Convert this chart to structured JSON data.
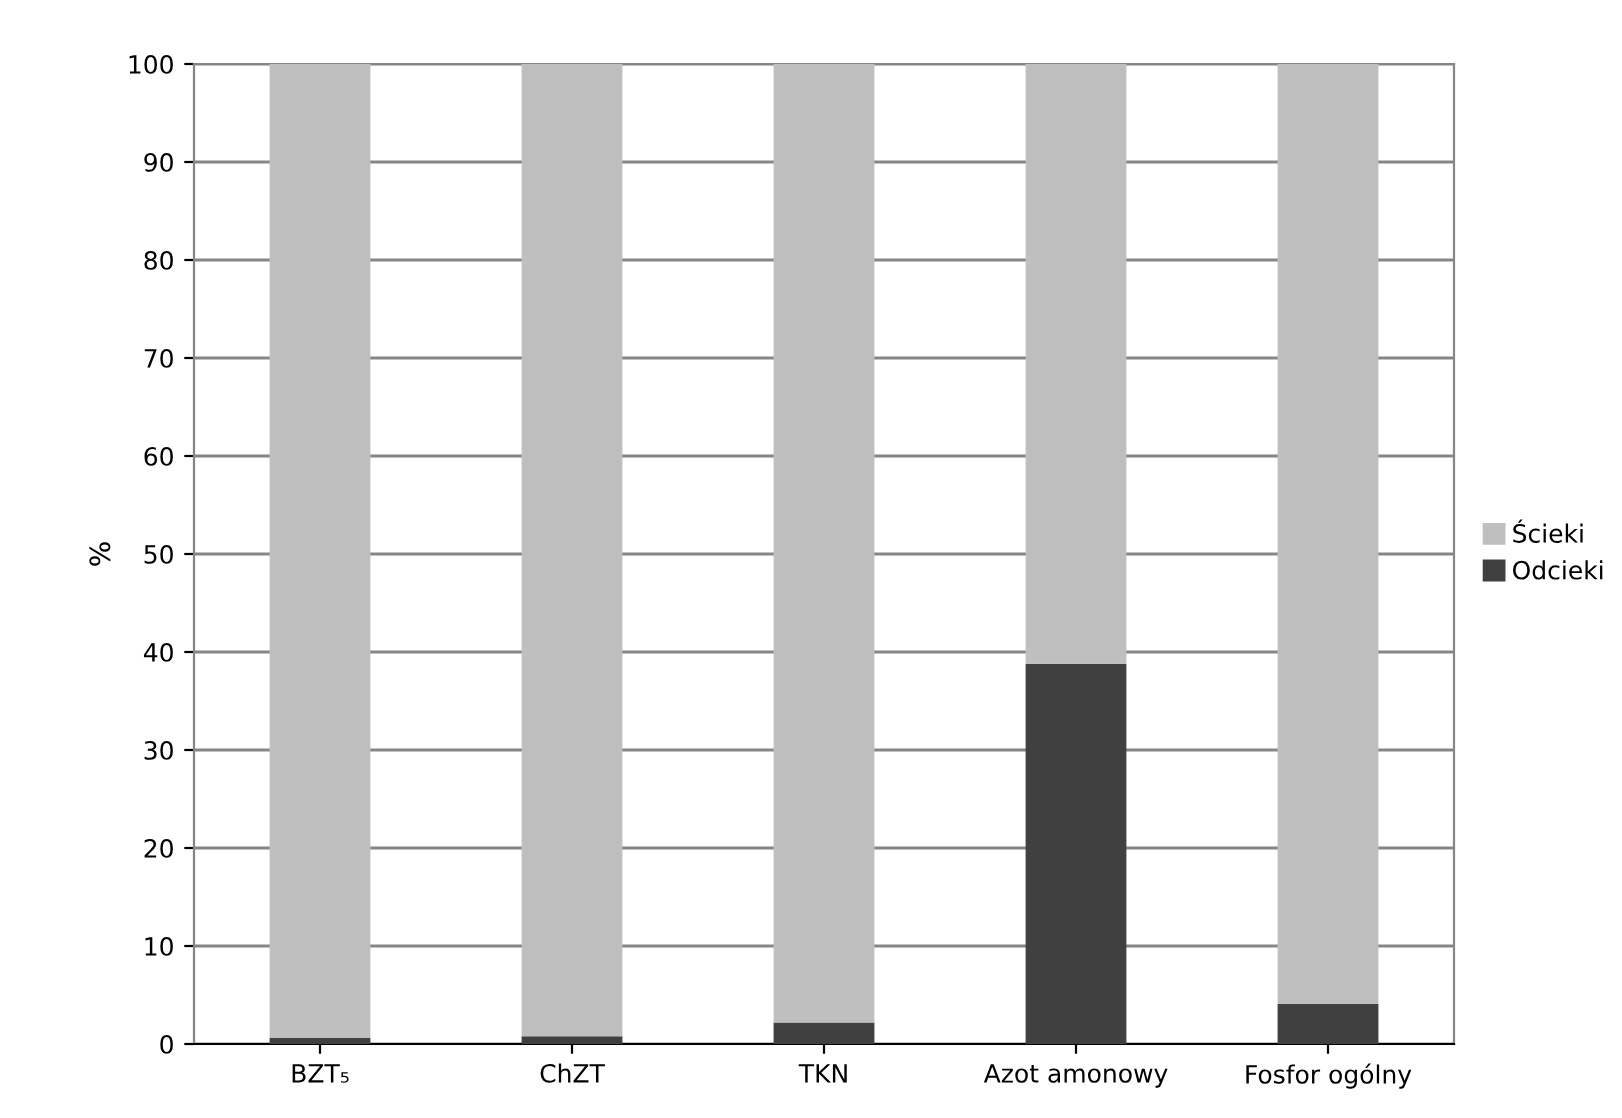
{
  "chart_data": {
    "type": "bar",
    "stacked": true,
    "ylabel": "%",
    "categories": [
      "BZT₅",
      "ChZT",
      "TKN",
      "Azot amonowy",
      "Fosfor ogólny"
    ],
    "series": [
      {
        "name": "Odcieki",
        "color": "#404040",
        "values": [
          0.6,
          0.8,
          2.2,
          38.8,
          4.1
        ]
      },
      {
        "name": "Ścieki",
        "color": "#bfbfbf",
        "values": [
          99.4,
          99.2,
          97.8,
          61.2,
          95.9
        ]
      }
    ],
    "ylim": [
      0,
      100
    ],
    "yticks": [
      0,
      10,
      20,
      30,
      40,
      50,
      60,
      70,
      80,
      90,
      100
    ],
    "grid": "y",
    "legend": "right"
  }
}
